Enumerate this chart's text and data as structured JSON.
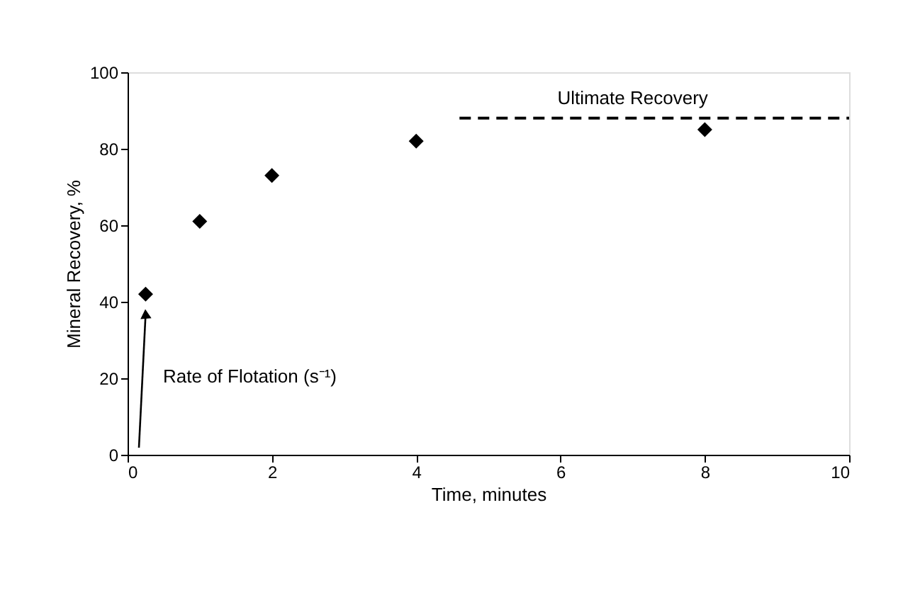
{
  "chart_data": {
    "type": "scatter",
    "xlabel": "Time, minutes",
    "ylabel": "Mineral Recovery, %",
    "series": [
      {
        "color": "#000000",
        "marker": "diamond",
        "x": [
          0.25,
          1,
          2,
          4,
          8
        ],
        "values": [
          42,
          61,
          73,
          82,
          85
        ]
      },
      {
        "type": "line",
        "color": "#000000",
        "line_style": "dashed",
        "marker": "none",
        "x": [
          4.6,
          10
        ],
        "values": [
          88,
          88
        ]
      }
    ],
    "annotations": [
      {
        "text": "Ultimate Recovery",
        "x": 7,
        "y": 88
      },
      "Rate of Flotation (s⁻¹)"
    ],
    "xlim": [
      0,
      10
    ],
    "ylim": [
      0,
      100
    ],
    "xticks": [
      0,
      2,
      4,
      6,
      8,
      10
    ],
    "yticks": [
      0,
      20,
      40,
      60,
      80,
      100
    ],
    "grid": false
  }
}
